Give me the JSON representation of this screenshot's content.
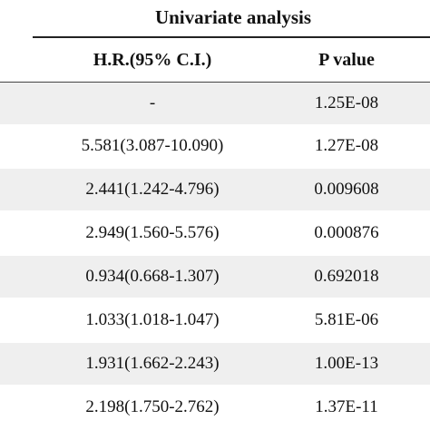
{
  "table": {
    "title": "Univariate analysis",
    "columns": {
      "hr": "H.R.(95% C.I.)",
      "p": "P value"
    },
    "rows": [
      {
        "hr": "-",
        "p": "1.25E-08"
      },
      {
        "hr": "5.581(3.087-10.090)",
        "p": "1.27E-08"
      },
      {
        "hr": "2.441(1.242-4.796)",
        "p": "0.009608"
      },
      {
        "hr": "2.949(1.560-5.576)",
        "p": "0.000876"
      },
      {
        "hr": "0.934(0.668-1.307)",
        "p": "0.692018"
      },
      {
        "hr": "1.033(1.018-1.047)",
        "p": "5.81E-06"
      },
      {
        "hr": "1.931(1.662-2.243)",
        "p": "1.00E-13"
      },
      {
        "hr": "2.198(1.750-2.762)",
        "p": "1.37E-11"
      }
    ]
  },
  "colors": {
    "shade": "#efefef",
    "text": "#111111",
    "rule": "#222222"
  }
}
